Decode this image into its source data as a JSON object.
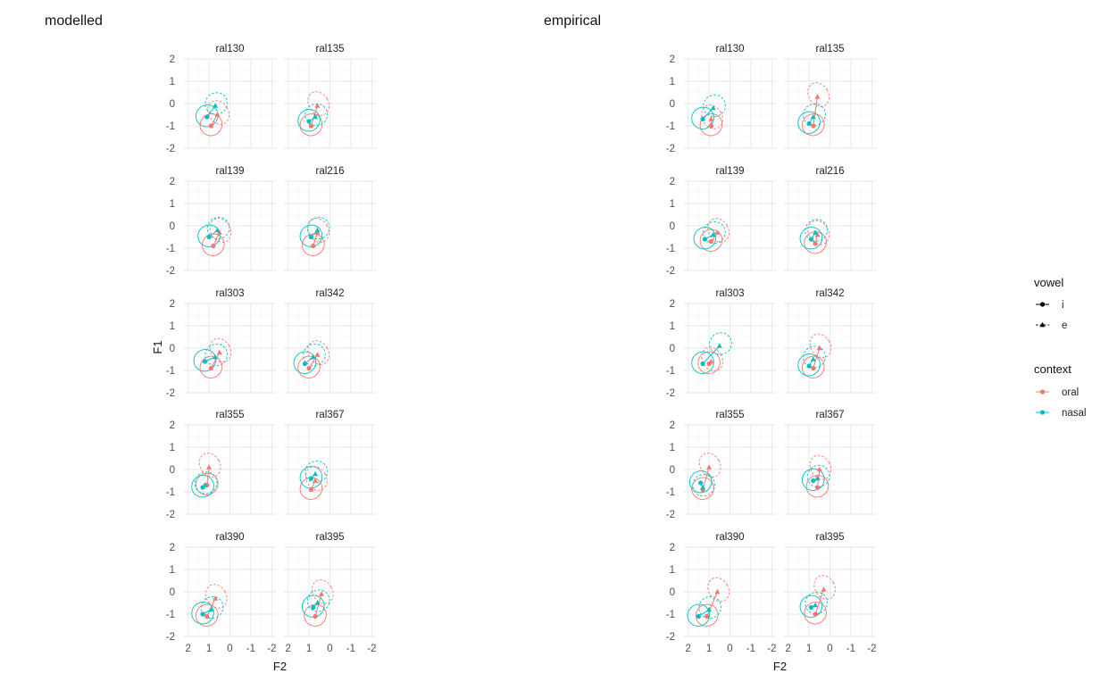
{
  "panels_left_title": "modelled",
  "panels_right_title": "empirical",
  "legend": {
    "vowel": {
      "title": "vowel",
      "items": [
        {
          "label": "i",
          "shape": "circle",
          "linetype": "solid"
        },
        {
          "label": "e",
          "shape": "triangle",
          "linetype": "dashed"
        }
      ]
    },
    "context": {
      "title": "context",
      "items": [
        {
          "label": "oral",
          "color": "#F8766D"
        },
        {
          "label": "nasal",
          "color": "#00BFC4"
        }
      ]
    }
  },
  "chart_data": [
    {
      "type": "scatter",
      "title": "modelled",
      "xlabel": "F2",
      "ylabel": "F1",
      "x_reversed": true,
      "y_reversed": true,
      "xlim": [
        2.2,
        -2.2
      ],
      "ylim": [
        2,
        -2
      ],
      "x_ticks": [
        "2",
        "1",
        "0",
        "-1",
        "-2"
      ],
      "y_ticks": [
        "-2",
        "-1",
        "0",
        "1",
        "2"
      ],
      "facets": [
        {
          "speaker": "ral130",
          "points": [
            {
              "vowel": "i",
              "context": "oral",
              "F2": 0.9,
              "F1": -1.0
            },
            {
              "vowel": "i",
              "context": "nasal",
              "F2": 1.1,
              "F1": -0.6
            },
            {
              "vowel": "e",
              "context": "oral",
              "F2": 0.6,
              "F1": -0.5
            },
            {
              "vowel": "e",
              "context": "nasal",
              "F2": 0.7,
              "F1": -0.1
            }
          ]
        },
        {
          "speaker": "ral135",
          "points": [
            {
              "vowel": "i",
              "context": "oral",
              "F2": 0.9,
              "F1": -1.0
            },
            {
              "vowel": "i",
              "context": "nasal",
              "F2": 1.0,
              "F1": -0.8
            },
            {
              "vowel": "e",
              "context": "oral",
              "F2": 0.6,
              "F1": -0.1
            },
            {
              "vowel": "e",
              "context": "nasal",
              "F2": 0.7,
              "F1": -0.6
            }
          ]
        },
        {
          "speaker": "ral139",
          "points": [
            {
              "vowel": "i",
              "context": "oral",
              "F2": 0.8,
              "F1": -0.9
            },
            {
              "vowel": "i",
              "context": "nasal",
              "F2": 1.0,
              "F1": -0.5
            },
            {
              "vowel": "e",
              "context": "oral",
              "F2": 0.5,
              "F1": -0.3
            },
            {
              "vowel": "e",
              "context": "nasal",
              "F2": 0.6,
              "F1": -0.2
            }
          ]
        },
        {
          "speaker": "ral216",
          "points": [
            {
              "vowel": "i",
              "context": "oral",
              "F2": 0.8,
              "F1": -0.9
            },
            {
              "vowel": "i",
              "context": "nasal",
              "F2": 0.9,
              "F1": -0.5
            },
            {
              "vowel": "e",
              "context": "oral",
              "F2": 0.6,
              "F1": -0.3
            },
            {
              "vowel": "e",
              "context": "nasal",
              "F2": 0.6,
              "F1": -0.2
            }
          ]
        },
        {
          "speaker": "ral303",
          "points": [
            {
              "vowel": "i",
              "context": "oral",
              "F2": 0.9,
              "F1": -0.9
            },
            {
              "vowel": "i",
              "context": "nasal",
              "F2": 1.2,
              "F1": -0.6
            },
            {
              "vowel": "e",
              "context": "oral",
              "F2": 0.5,
              "F1": -0.2
            },
            {
              "vowel": "e",
              "context": "nasal",
              "F2": 0.7,
              "F1": -0.4
            }
          ]
        },
        {
          "speaker": "ral342",
          "points": [
            {
              "vowel": "i",
              "context": "oral",
              "F2": 1.0,
              "F1": -0.9
            },
            {
              "vowel": "i",
              "context": "nasal",
              "F2": 1.2,
              "F1": -0.7
            },
            {
              "vowel": "e",
              "context": "oral",
              "F2": 0.6,
              "F1": -0.3
            },
            {
              "vowel": "e",
              "context": "nasal",
              "F2": 0.8,
              "F1": -0.4
            }
          ]
        },
        {
          "speaker": "ral355",
          "points": [
            {
              "vowel": "i",
              "context": "oral",
              "F2": 1.1,
              "F1": -0.7
            },
            {
              "vowel": "i",
              "context": "nasal",
              "F2": 1.3,
              "F1": -0.8
            },
            {
              "vowel": "e",
              "context": "oral",
              "F2": 1.0,
              "F1": 0.1
            },
            {
              "vowel": "e",
              "context": "nasal",
              "F2": 1.2,
              "F1": -0.7
            }
          ]
        },
        {
          "speaker": "ral367",
          "points": [
            {
              "vowel": "i",
              "context": "oral",
              "F2": 0.9,
              "F1": -0.9
            },
            {
              "vowel": "i",
              "context": "nasal",
              "F2": 0.9,
              "F1": -0.4
            },
            {
              "vowel": "e",
              "context": "oral",
              "F2": 0.7,
              "F1": -0.5
            },
            {
              "vowel": "e",
              "context": "nasal",
              "F2": 0.7,
              "F1": -0.2
            }
          ]
        },
        {
          "speaker": "ral390",
          "points": [
            {
              "vowel": "i",
              "context": "oral",
              "F2": 1.1,
              "F1": -1.1
            },
            {
              "vowel": "i",
              "context": "nasal",
              "F2": 1.3,
              "F1": -1.0
            },
            {
              "vowel": "e",
              "context": "oral",
              "F2": 0.7,
              "F1": -0.3
            },
            {
              "vowel": "e",
              "context": "nasal",
              "F2": 0.9,
              "F1": -0.8
            }
          ]
        },
        {
          "speaker": "ral395",
          "points": [
            {
              "vowel": "i",
              "context": "oral",
              "F2": 0.7,
              "F1": -1.1
            },
            {
              "vowel": "i",
              "context": "nasal",
              "F2": 0.8,
              "F1": -0.7
            },
            {
              "vowel": "e",
              "context": "oral",
              "F2": 0.4,
              "F1": -0.1
            },
            {
              "vowel": "e",
              "context": "nasal",
              "F2": 0.6,
              "F1": -0.5
            }
          ]
        }
      ]
    },
    {
      "type": "scatter",
      "title": "empirical",
      "xlabel": "F2",
      "ylabel": "",
      "x_reversed": true,
      "y_reversed": true,
      "xlim": [
        2.2,
        -2.2
      ],
      "ylim": [
        2,
        -2
      ],
      "x_ticks": [
        "2",
        "1",
        "0",
        "-1",
        "-2"
      ],
      "y_ticks": [
        "-2",
        "-1",
        "0",
        "1",
        "2"
      ],
      "facets": [
        {
          "speaker": "ral130",
          "points": [
            {
              "vowel": "i",
              "context": "oral",
              "F2": 0.9,
              "F1": -1.0
            },
            {
              "vowel": "i",
              "context": "nasal",
              "F2": 1.3,
              "F1": -0.7
            },
            {
              "vowel": "e",
              "context": "oral",
              "F2": 0.9,
              "F1": -0.7
            },
            {
              "vowel": "e",
              "context": "nasal",
              "F2": 0.8,
              "F1": -0.2
            }
          ]
        },
        {
          "speaker": "ral135",
          "points": [
            {
              "vowel": "i",
              "context": "oral",
              "F2": 0.8,
              "F1": -1.0
            },
            {
              "vowel": "i",
              "context": "nasal",
              "F2": 1.0,
              "F1": -0.9
            },
            {
              "vowel": "e",
              "context": "oral",
              "F2": 0.6,
              "F1": 0.3
            },
            {
              "vowel": "e",
              "context": "nasal",
              "F2": 0.8,
              "F1": -0.6
            }
          ]
        },
        {
          "speaker": "ral139",
          "points": [
            {
              "vowel": "i",
              "context": "oral",
              "F2": 0.9,
              "F1": -0.7
            },
            {
              "vowel": "i",
              "context": "nasal",
              "F2": 1.2,
              "F1": -0.6
            },
            {
              "vowel": "e",
              "context": "oral",
              "F2": 0.6,
              "F1": -0.3
            },
            {
              "vowel": "e",
              "context": "nasal",
              "F2": 0.8,
              "F1": -0.4
            }
          ]
        },
        {
          "speaker": "ral216",
          "points": [
            {
              "vowel": "i",
              "context": "oral",
              "F2": 0.7,
              "F1": -0.8
            },
            {
              "vowel": "i",
              "context": "nasal",
              "F2": 0.9,
              "F1": -0.6
            },
            {
              "vowel": "e",
              "context": "oral",
              "F2": 0.6,
              "F1": -0.4
            },
            {
              "vowel": "e",
              "context": "nasal",
              "F2": 0.7,
              "F1": -0.3
            }
          ]
        },
        {
          "speaker": "ral303",
          "points": [
            {
              "vowel": "i",
              "context": "oral",
              "F2": 1.0,
              "F1": -0.7
            },
            {
              "vowel": "i",
              "context": "nasal",
              "F2": 1.3,
              "F1": -0.7
            },
            {
              "vowel": "e",
              "context": "oral",
              "F2": 0.9,
              "F1": -0.6
            },
            {
              "vowel": "e",
              "context": "nasal",
              "F2": 0.5,
              "F1": 0.1
            }
          ]
        },
        {
          "speaker": "ral342",
          "points": [
            {
              "vowel": "i",
              "context": "oral",
              "F2": 0.8,
              "F1": -0.9
            },
            {
              "vowel": "i",
              "context": "nasal",
              "F2": 1.0,
              "F1": -0.8
            },
            {
              "vowel": "e",
              "context": "oral",
              "F2": 0.5,
              "F1": 0.0
            },
            {
              "vowel": "e",
              "context": "nasal",
              "F2": 0.8,
              "F1": -0.5
            }
          ]
        },
        {
          "speaker": "ral355",
          "points": [
            {
              "vowel": "i",
              "context": "oral",
              "F2": 1.3,
              "F1": -0.9
            },
            {
              "vowel": "i",
              "context": "nasal",
              "F2": 1.4,
              "F1": -0.6
            },
            {
              "vowel": "e",
              "context": "oral",
              "F2": 1.0,
              "F1": 0.1
            },
            {
              "vowel": "e",
              "context": "nasal",
              "F2": 1.3,
              "F1": -0.8
            }
          ]
        },
        {
          "speaker": "ral367",
          "points": [
            {
              "vowel": "i",
              "context": "oral",
              "F2": 0.6,
              "F1": -0.8
            },
            {
              "vowel": "i",
              "context": "nasal",
              "F2": 0.8,
              "F1": -0.5
            },
            {
              "vowel": "e",
              "context": "oral",
              "F2": 0.5,
              "F1": 0.0
            },
            {
              "vowel": "e",
              "context": "nasal",
              "F2": 0.6,
              "F1": -0.4
            }
          ]
        },
        {
          "speaker": "ral390",
          "points": [
            {
              "vowel": "i",
              "context": "oral",
              "F2": 1.1,
              "F1": -1.1
            },
            {
              "vowel": "i",
              "context": "nasal",
              "F2": 1.5,
              "F1": -1.1
            },
            {
              "vowel": "e",
              "context": "oral",
              "F2": 0.6,
              "F1": 0.0
            },
            {
              "vowel": "e",
              "context": "nasal",
              "F2": 1.0,
              "F1": -0.8
            }
          ]
        },
        {
          "speaker": "ral395",
          "points": [
            {
              "vowel": "i",
              "context": "oral",
              "F2": 0.7,
              "F1": -1.0
            },
            {
              "vowel": "i",
              "context": "nasal",
              "F2": 0.9,
              "F1": -0.7
            },
            {
              "vowel": "e",
              "context": "oral",
              "F2": 0.3,
              "F1": 0.1
            },
            {
              "vowel": "e",
              "context": "nasal",
              "F2": 0.7,
              "F1": -0.6
            }
          ]
        }
      ]
    }
  ]
}
